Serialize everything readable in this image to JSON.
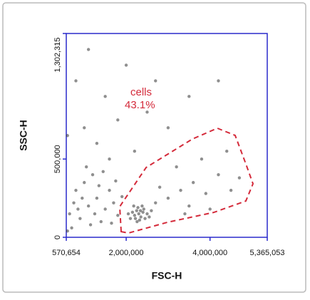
{
  "chart_data": {
    "type": "scatter",
    "x_label": "FSC-H",
    "y_label": "SSC-H",
    "xlim": [
      570654,
      5365053
    ],
    "ylim": [
      0,
      1302315
    ],
    "xticks": [
      {
        "value": 570654,
        "label": "570,654"
      },
      {
        "value": 2000000,
        "label": "2,000,000"
      },
      {
        "value": 4000000,
        "label": "4,000,000"
      },
      {
        "value": 5365053,
        "label": "5,365,053"
      }
    ],
    "yticks": [
      0,
      {
        "value": 500000,
        "label": "500,000"
      },
      {
        "value": 1302315,
        "label": "1,302,315"
      }
    ],
    "color": "#333333",
    "frame_color": "#2a2acc",
    "x": [
      2300000,
      2250000,
      2350000,
      2400000,
      2200000,
      2280000,
      2450000,
      2150000,
      2320000,
      2380000,
      2500000,
      2100000,
      2260000,
      2420000,
      2180000,
      2550000,
      2340000,
      2220000,
      2600000,
      2050000,
      700000,
      900000,
      1100000,
      1300000,
      800000,
      1000000,
      1500000,
      1700000,
      1200000,
      650000,
      1400000,
      1600000,
      950000,
      1800000,
      1150000,
      750000,
      1350000,
      1900000,
      1050000,
      850000,
      1450000,
      1250000,
      1650000,
      600000,
      1750000,
      3000000,
      3300000,
      3600000,
      3900000,
      4200000,
      3500000,
      2800000,
      4500000,
      3200000,
      3800000,
      4000000,
      2700000,
      4400000,
      3400000,
      4700000,
      1000000,
      1500000,
      2000000,
      800000,
      1300000,
      2500000,
      3000000,
      1800000,
      2200000,
      1100000,
      3500000,
      2700000,
      600000,
      4200000,
      1600000
    ],
    "y": [
      150000,
      170000,
      130000,
      160000,
      140000,
      190000,
      120000,
      160000,
      110000,
      200000,
      150000,
      120000,
      100000,
      180000,
      200000,
      130000,
      170000,
      120000,
      170000,
      150000,
      60000,
      120000,
      200000,
      250000,
      300000,
      350000,
      180000,
      220000,
      400000,
      150000,
      100000,
      300000,
      250000,
      140000,
      80000,
      220000,
      330000,
      260000,
      450000,
      180000,
      420000,
      150000,
      90000,
      40000,
      360000,
      250000,
      300000,
      350000,
      280000,
      400000,
      200000,
      320000,
      300000,
      450000,
      500000,
      180000,
      220000,
      550000,
      150000,
      380000,
      700000,
      900000,
      1100000,
      1000000,
      600000,
      800000,
      700000,
      750000,
      550000,
      1200000,
      900000,
      1000000,
      650000,
      1000000,
      500000
    ],
    "gate": {
      "name": "cells",
      "value": 43.1,
      "value_label": "43.1%",
      "color": "#d42a3a",
      "x": [
        1880000,
        1846000,
        2475000,
        3580000,
        4175000,
        4600000,
        4855000,
        5025000,
        4855000,
        4090000,
        2985000,
        2050000
      ],
      "y": [
        36000,
        196000,
        446000,
        628000,
        697000,
        651000,
        469000,
        342000,
        232000,
        159000,
        96000,
        27000
      ]
    }
  }
}
